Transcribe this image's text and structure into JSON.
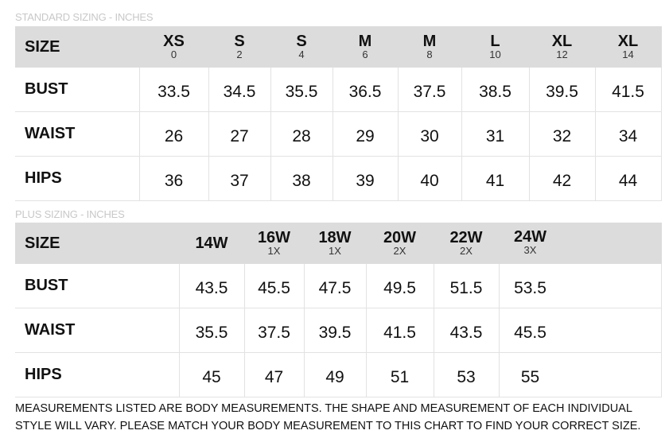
{
  "standard": {
    "caption": "STANDARD SIZING - INCHES",
    "header_label": "SIZE",
    "sizes": [
      {
        "size": "XS",
        "num": "0"
      },
      {
        "size": "S",
        "num": "2"
      },
      {
        "size": "S",
        "num": "4"
      },
      {
        "size": "M",
        "num": "6"
      },
      {
        "size": "M",
        "num": "8"
      },
      {
        "size": "L",
        "num": "10"
      },
      {
        "size": "XL",
        "num": "12"
      },
      {
        "size": "XL",
        "num": "14"
      }
    ],
    "rows": [
      {
        "label": "BUST",
        "values": [
          "33.5",
          "34.5",
          "35.5",
          "36.5",
          "37.5",
          "38.5",
          "39.5",
          "41.5"
        ]
      },
      {
        "label": "WAIST",
        "values": [
          "26",
          "27",
          "28",
          "29",
          "30",
          "31",
          "32",
          "34"
        ]
      },
      {
        "label": "HIPS",
        "values": [
          "36",
          "37",
          "38",
          "39",
          "40",
          "41",
          "42",
          "44"
        ]
      }
    ]
  },
  "plus": {
    "caption": "PLUS SIZING - INCHES",
    "header_label": "SIZE",
    "sizes": [
      {
        "size": "14W",
        "num": ""
      },
      {
        "size": "16W",
        "num": "1X"
      },
      {
        "size": "18W",
        "num": "1X"
      },
      {
        "size": "20W",
        "num": "2X"
      },
      {
        "size": "22W",
        "num": "2X"
      },
      {
        "size": "24W",
        "num": "3X"
      }
    ],
    "rows": [
      {
        "label": "BUST",
        "values": [
          "43.5",
          "45.5",
          "47.5",
          "49.5",
          "51.5",
          "53.5"
        ]
      },
      {
        "label": "WAIST",
        "values": [
          "35.5",
          "37.5",
          "39.5",
          "41.5",
          "43.5",
          "45.5"
        ]
      },
      {
        "label": "HIPS",
        "values": [
          "45",
          "47",
          "49",
          "51",
          "53",
          "55"
        ]
      }
    ]
  },
  "note": "MEASUREMENTS LISTED ARE BODY MEASUREMENTS. THE SHAPE AND MEASUREMENT OF EACH INDIVIDUAL STYLE WILL VARY. PLEASE MATCH YOUR BODY MEASUREMENT TO THIS CHART TO FIND YOUR CORRECT SIZE."
}
